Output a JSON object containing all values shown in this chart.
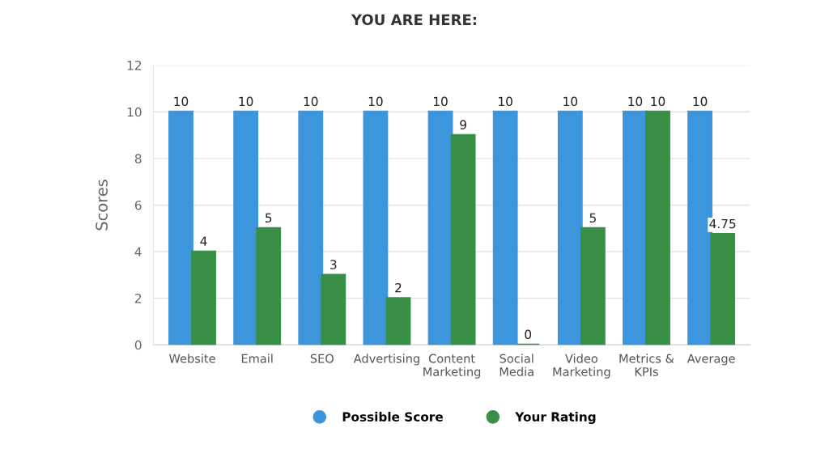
{
  "chart_data": {
    "type": "bar",
    "title": "YOU ARE HERE:",
    "ylabel": "Scores",
    "categories": [
      "Website",
      "Email",
      "SEO",
      "Advertising",
      "Content\nMarketing",
      "Social\nMedia",
      "Video\nMarketing",
      "Metrics &\nKPIs",
      "Average"
    ],
    "series": [
      {
        "name": "Possible Score",
        "color": "#3d95dc",
        "values": [
          10,
          10,
          10,
          10,
          10,
          10,
          10,
          10,
          10
        ]
      },
      {
        "name": "Your Rating",
        "color": "#3a8f46",
        "values": [
          4,
          5,
          3,
          2,
          9,
          0,
          5,
          10,
          4.75
        ]
      }
    ],
    "ylim": [
      0,
      12
    ],
    "yticks": [
      0,
      2,
      4,
      6,
      8,
      10,
      12
    ],
    "grid": "y",
    "legend": "bottom",
    "data_labels": true
  }
}
